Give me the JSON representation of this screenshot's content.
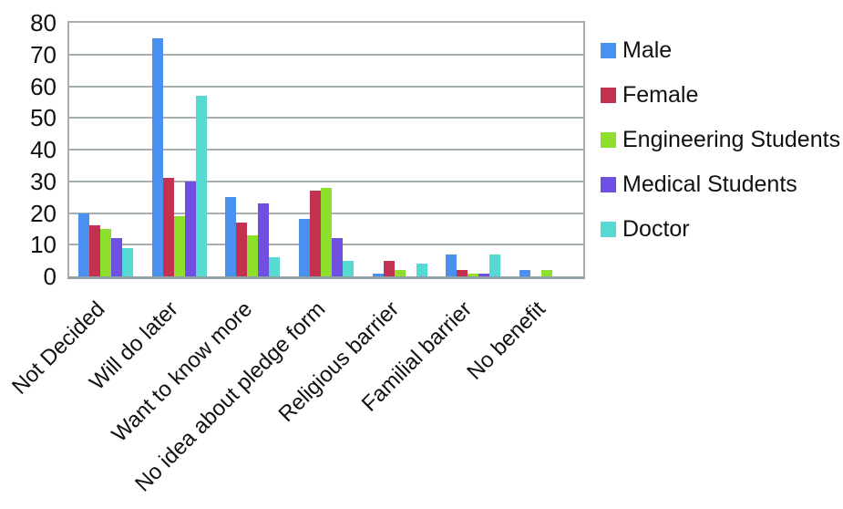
{
  "chart_data": {
    "type": "bar",
    "categories": [
      "Not Decided",
      "Will do later",
      "Want to know more",
      "No idea about pledge form",
      "Religious barrier",
      "Familial barrier",
      "No benefit"
    ],
    "series": [
      {
        "name": "Male",
        "color": "#4A90EE",
        "values": [
          20,
          75,
          25,
          18,
          1,
          7,
          2
        ]
      },
      {
        "name": "Female",
        "color": "#C33150",
        "values": [
          16,
          31,
          17,
          27,
          5,
          2,
          0
        ]
      },
      {
        "name": "Engineering Students",
        "color": "#8EDE2D",
        "values": [
          15,
          19,
          13,
          28,
          2,
          1,
          2
        ]
      },
      {
        "name": "Medical Students",
        "color": "#7050E2",
        "values": [
          12,
          30,
          23,
          12,
          0,
          1,
          0
        ]
      },
      {
        "name": "Doctor",
        "color": "#56D9D2",
        "values": [
          9,
          57,
          6,
          5,
          4,
          7,
          0
        ]
      }
    ],
    "ylim": [
      0,
      80
    ],
    "yticks": [
      0,
      10,
      20,
      30,
      40,
      50,
      60,
      70,
      80
    ],
    "grid": "horizontal",
    "legend_position": "right",
    "grid_color": "#A5AFB0",
    "axis_color": "#8FA0A7",
    "tick_label_color": "#111111"
  }
}
